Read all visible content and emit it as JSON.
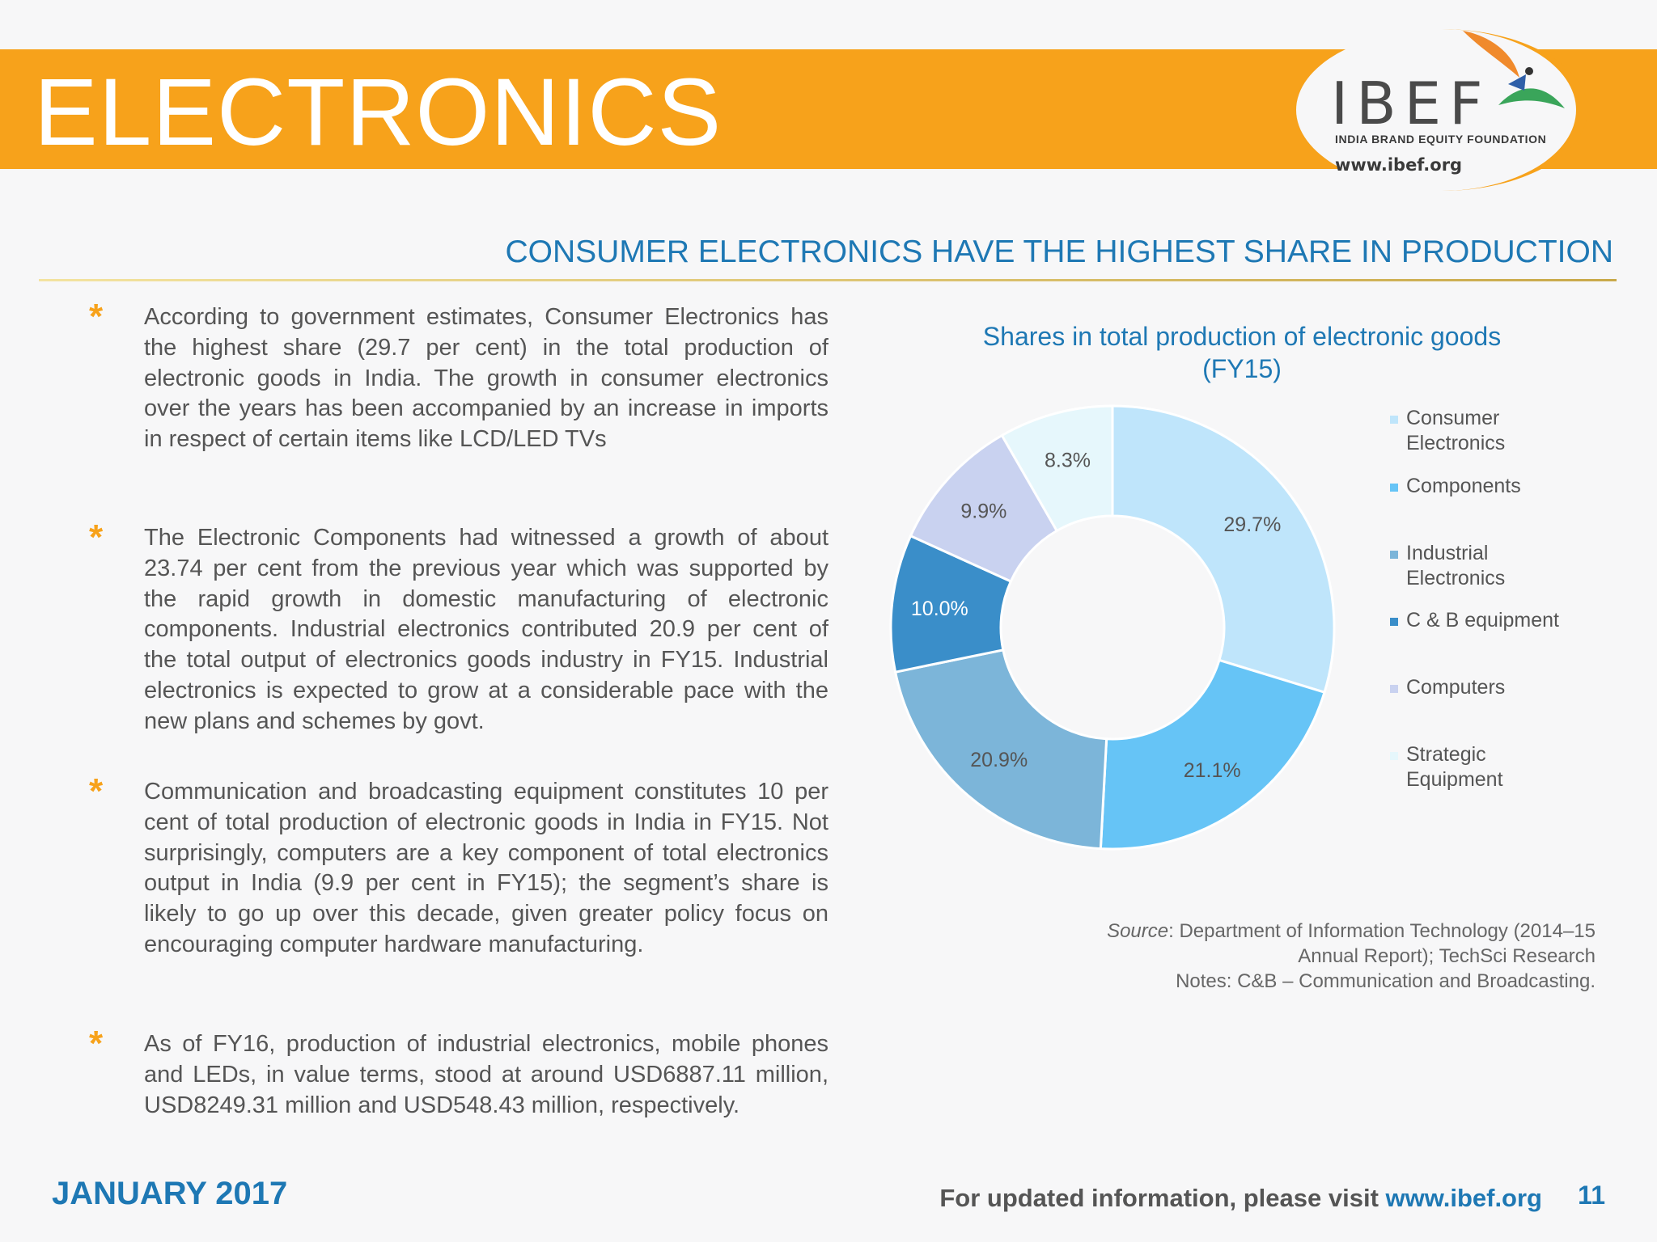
{
  "header": {
    "title": "ELECTRONICS",
    "logo": {
      "name": "IBEF",
      "tagline": "INDIA BRAND EQUITY FOUNDATION",
      "url": "www.ibef.org"
    }
  },
  "subtitle": "CONSUMER ELECTRONICS HAVE THE HIGHEST SHARE IN PRODUCTION",
  "bullets": [
    "According to government estimates, Consumer Electronics has the highest share (29.7 per cent) in the total production of electronic goods in India. The growth in consumer electronics over the years has been accompanied by an increase in imports in respect of certain items like LCD/LED TVs",
    "The Electronic Components had witnessed a growth of about 23.74 per cent from the previous year which was supported by the rapid growth in domestic manufacturing of electronic components. Industrial electronics contributed 20.9 per cent of the total output of electronics goods industry in FY15. Industrial electronics is expected to grow at a considerable pace with the new plans and schemes by govt.",
    "Communication and broadcasting equipment constitutes 10 per cent of total production of electronic goods in India in FY15. Not surprisingly, computers are a key component of total electronics output in India (9.9 per cent in FY15); the segment’s share is likely to go up over this decade, given greater policy focus on encouraging computer hardware manufacturing.",
    "As of FY16, production of industrial electronics, mobile phones and LEDs, in value terms, stood at around USD6887.11 million, USD8249.31 million and USD548.43 million, respectively."
  ],
  "bullet_marker": "*",
  "chart_data": {
    "type": "pie",
    "variant": "donut",
    "title": [
      "Shares in total production of electronic goods",
      "(FY15)"
    ],
    "categories": [
      "Consumer Electronics",
      "Components",
      "Industrial Electronics",
      "C & B equipment",
      "Computers",
      "Strategic Equipment"
    ],
    "values": [
      29.7,
      21.1,
      20.9,
      10.0,
      9.9,
      8.3
    ],
    "data_labels": [
      "29.7%",
      "21.1%",
      "20.9%",
      "10.0%",
      "9.9%",
      "8.3%"
    ],
    "colors": [
      "#bfe5fb",
      "#66c4f6",
      "#7cb5d9",
      "#3a8ec9",
      "#c9d2f0",
      "#e6f7fc"
    ],
    "label_colors": [
      "#555555",
      "#555555",
      "#555555",
      "#ffffff",
      "#555555",
      "#555555"
    ],
    "start_angle_deg": 0,
    "direction": "clockwise",
    "legend_position": "right",
    "legend_labels": [
      [
        "Consumer",
        "Electronics"
      ],
      [
        "Components"
      ],
      [
        "Industrial",
        "Electronics"
      ],
      [
        "C & B equipment"
      ],
      [
        "Computers"
      ],
      [
        "Strategic",
        "Equipment"
      ]
    ]
  },
  "source": {
    "label": "Source",
    "text": ": Department of Information Technology (2014–15 Annual Report); TechSci Research",
    "notes": "Notes: C&B – Communication and Broadcasting."
  },
  "footer": {
    "date": "JANUARY 2017",
    "visit_text": "For updated information, please visit ",
    "link": "www.ibef.org",
    "page_number": "11"
  }
}
